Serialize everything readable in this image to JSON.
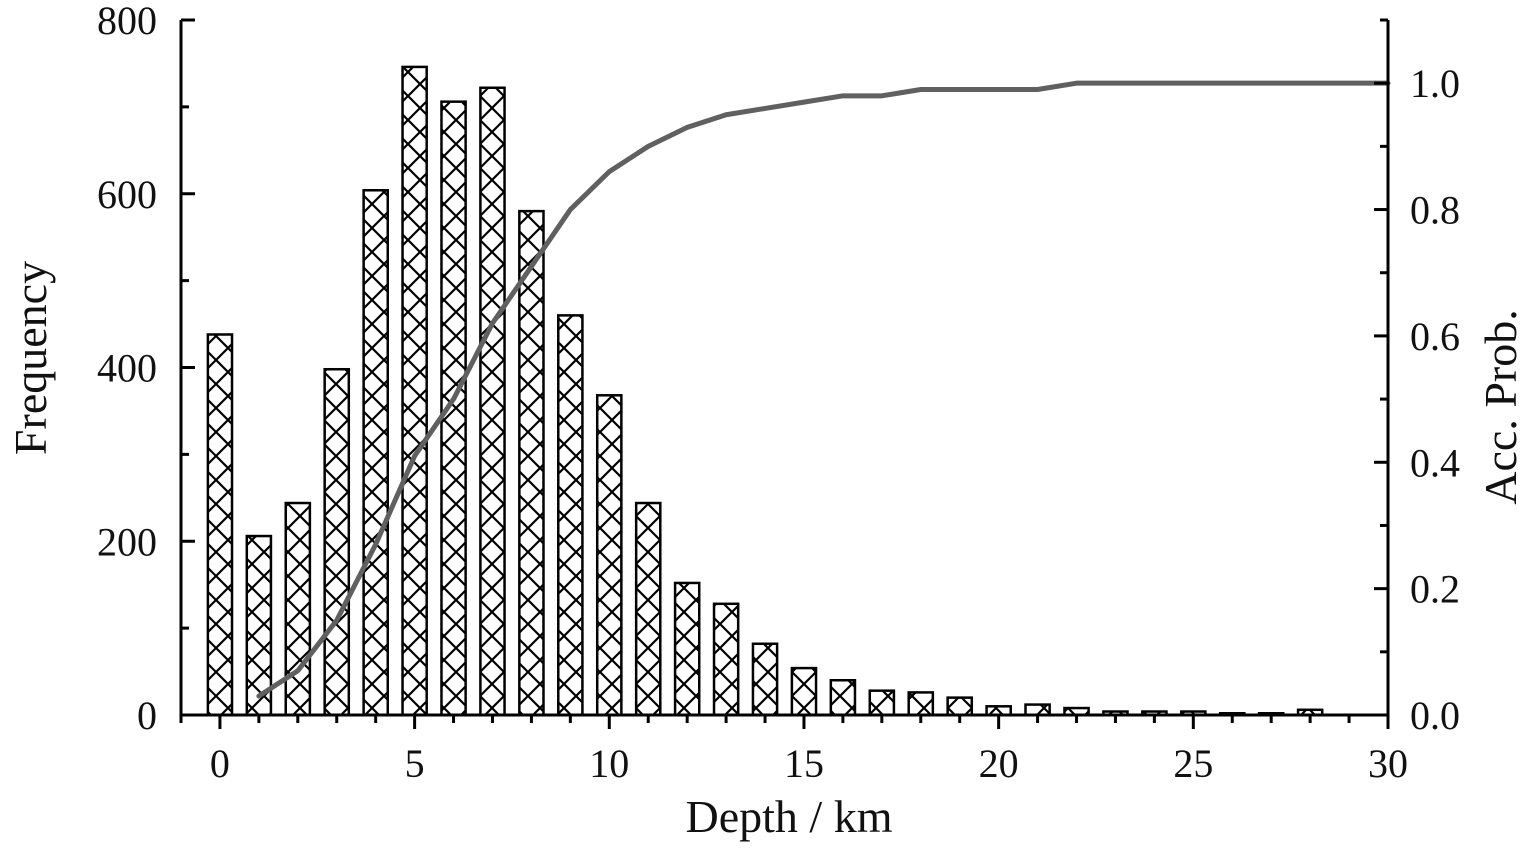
{
  "chart_data": {
    "type": "bar",
    "title": "",
    "xlabel": "Depth / km",
    "ylabel": "Frequency",
    "y2label": "Acc. Prob.",
    "xlim": [
      -1,
      30
    ],
    "ylim": [
      0,
      800
    ],
    "y2lim": [
      0,
      1.1
    ],
    "xticks": [
      0,
      5,
      10,
      15,
      20,
      25,
      30
    ],
    "yticks": [
      0,
      200,
      400,
      600,
      800
    ],
    "y2ticks": [
      0.0,
      0.2,
      0.4,
      0.6,
      0.8,
      1.0
    ],
    "xtick_labels": [
      "0",
      "5",
      "10",
      "15",
      "20",
      "25",
      "30"
    ],
    "ytick_labels": [
      "0",
      "200",
      "400",
      "600",
      "800"
    ],
    "y2tick_labels": [
      "0.0",
      "0.2",
      "0.4",
      "0.6",
      "0.8",
      "1.0"
    ],
    "bar_pattern": "crosshatch",
    "line_color": "#606060",
    "series": [
      {
        "type": "bar",
        "axis": "left",
        "x": [
          0,
          1,
          2,
          3,
          4,
          5,
          6,
          7,
          8,
          9,
          10,
          11,
          12,
          13,
          14,
          15,
          16,
          17,
          18,
          19,
          20,
          21,
          22,
          23,
          24,
          25,
          26,
          27,
          28
        ],
        "values": [
          438,
          206,
          244,
          398,
          604,
          746,
          706,
          722,
          580,
          460,
          368,
          244,
          152,
          128,
          82,
          54,
          40,
          28,
          26,
          20,
          10,
          12,
          8,
          4,
          4,
          4,
          2,
          2,
          6
        ]
      },
      {
        "type": "line",
        "axis": "right",
        "x": [
          1,
          2,
          3,
          4,
          5,
          6,
          7,
          8,
          9,
          10,
          11,
          12,
          13,
          14,
          15,
          16,
          17,
          18,
          19,
          20,
          21,
          22,
          23,
          24,
          25,
          26,
          27,
          28,
          29,
          30
        ],
        "values": [
          0.03,
          0.07,
          0.15,
          0.27,
          0.41,
          0.5,
          0.62,
          0.71,
          0.8,
          0.86,
          0.9,
          0.93,
          0.95,
          0.96,
          0.97,
          0.98,
          0.98,
          0.99,
          0.99,
          0.99,
          0.99,
          1.0,
          1.0,
          1.0,
          1.0,
          1.0,
          1.0,
          1.0,
          1.0,
          1.0
        ]
      }
    ]
  }
}
